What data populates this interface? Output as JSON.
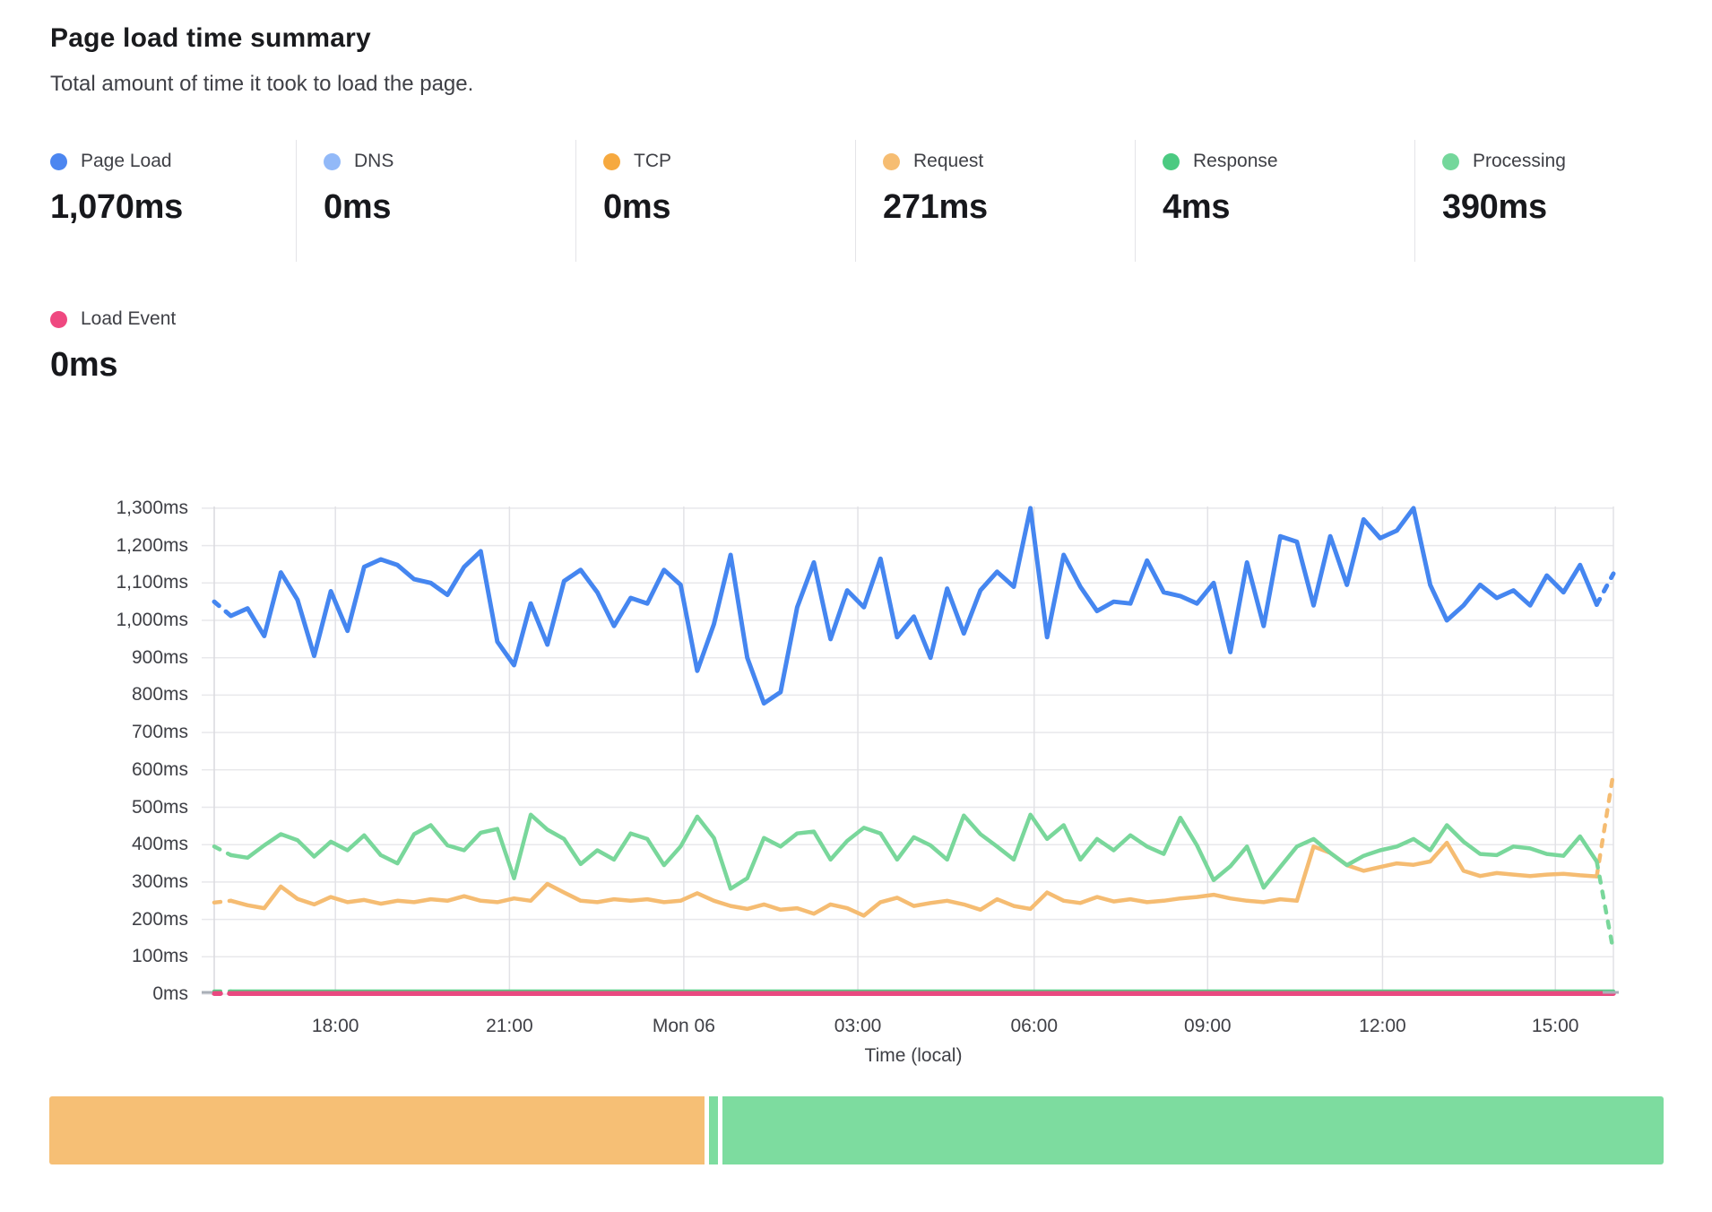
{
  "header": {
    "title": "Page load time summary",
    "subtitle": "Total amount of time it took to load the page."
  },
  "metrics": [
    {
      "id": "page-load",
      "label": "Page Load",
      "value": "1,070ms",
      "color": "#4c86f0"
    },
    {
      "id": "dns",
      "label": "DNS",
      "value": "0ms",
      "color": "#92b9f8"
    },
    {
      "id": "tcp",
      "label": "TCP",
      "value": "0ms",
      "color": "#f6a93f"
    },
    {
      "id": "request",
      "label": "Request",
      "value": "271ms",
      "color": "#f6bd72"
    },
    {
      "id": "response",
      "label": "Response",
      "value": "4ms",
      "color": "#4bca81"
    },
    {
      "id": "processing",
      "label": "Processing",
      "value": "390ms",
      "color": "#74d79b"
    }
  ],
  "metrics_row2": {
    "id": "load-event",
    "label": "Load Event",
    "value": "0ms",
    "color": "#ef4880"
  },
  "chart": {
    "y_tick_labels": [
      "0ms",
      "100ms",
      "200ms",
      "300ms",
      "400ms",
      "500ms",
      "600ms",
      "700ms",
      "800ms",
      "900ms",
      "1,000ms",
      "1,100ms",
      "1,200ms",
      "1,300ms"
    ],
    "x_ticks": [
      {
        "label": "18:00",
        "f": 0.0866
      },
      {
        "label": "21:00",
        "f": 0.211
      },
      {
        "label": "Mon 06",
        "f": 0.3356
      },
      {
        "label": "03:00",
        "f": 0.46
      },
      {
        "label": "06:00",
        "f": 0.586
      },
      {
        "label": "09:00",
        "f": 0.71
      },
      {
        "label": "12:00",
        "f": 0.835
      },
      {
        "label": "15:00",
        "f": 0.9585
      }
    ],
    "x_axis_label": "Time (local)",
    "grid_color": "#e8e8eb",
    "vgrid_color": "#e2e2e6",
    "axis_color": "#d9d9de",
    "end_tick_color": "#aab0b8"
  },
  "chart_data": {
    "type": "line",
    "unit": "ms",
    "title": "Page load time summary",
    "xlabel": "Time (local)",
    "x_tick_labels": [
      "18:00",
      "21:00",
      "Mon 06",
      "03:00",
      "06:00",
      "09:00",
      "12:00",
      "15:00"
    ],
    "y_axis": {
      "min": 0,
      "max": 1300,
      "step": 100,
      "unit": "ms"
    },
    "note": "~24h window ending ~16:00 Mon; points estimated at ~17-min cadence from pixels; first and last segments of each series are dashed (partial data).",
    "series": [
      {
        "name": "Page Load",
        "color": "#4586f0",
        "dash_first": true,
        "dash_last": true,
        "width": 5,
        "values": [
          1050,
          1012,
          1032,
          958,
          1128,
          1055,
          905,
          1078,
          972,
          1143,
          1163,
          1148,
          1110,
          1100,
          1068,
          1143,
          1185,
          943,
          880,
          1045,
          935,
          1105,
          1135,
          1075,
          985,
          1060,
          1045,
          1135,
          1095,
          865,
          990,
          1175,
          900,
          778,
          808,
          1035,
          1155,
          950,
          1080,
          1035,
          1165,
          955,
          1010,
          900,
          1085,
          965,
          1080,
          1130,
          1090,
          1300,
          955,
          1175,
          1090,
          1025,
          1050,
          1045,
          1160,
          1075,
          1065,
          1045,
          1100,
          915,
          1155,
          985,
          1225,
          1210,
          1040,
          1225,
          1095,
          1270,
          1220,
          1240,
          1300,
          1095,
          1000,
          1040,
          1095,
          1060,
          1080,
          1040,
          1120,
          1075,
          1148,
          1042,
          1125
        ]
      },
      {
        "name": "Processing",
        "color": "#79d79b",
        "dash_first": true,
        "dash_last": true,
        "width": 4.5,
        "values": [
          395,
          372,
          365,
          398,
          428,
          412,
          368,
          408,
          385,
          425,
          372,
          350,
          428,
          452,
          398,
          385,
          432,
          442,
          310,
          480,
          440,
          415,
          348,
          385,
          360,
          430,
          415,
          345,
          395,
          475,
          418,
          282,
          310,
          418,
          395,
          430,
          435,
          360,
          410,
          445,
          430,
          360,
          420,
          398,
          360,
          478,
          428,
          395,
          360,
          480,
          415,
          452,
          360,
          415,
          385,
          425,
          395,
          375,
          472,
          398,
          305,
          342,
          395,
          285,
          340,
          395,
          415,
          378,
          345,
          370,
          385,
          395,
          415,
          385,
          452,
          408,
          375,
          372,
          395,
          390,
          375,
          370,
          422,
          355,
          115
        ]
      },
      {
        "name": "Request",
        "color": "#f5bc72",
        "dash_first": true,
        "dash_last": true,
        "width": 4.5,
        "values": [
          245,
          250,
          238,
          230,
          288,
          255,
          240,
          260,
          246,
          252,
          242,
          250,
          246,
          254,
          250,
          262,
          250,
          246,
          256,
          250,
          295,
          272,
          250,
          246,
          254,
          250,
          254,
          246,
          250,
          270,
          250,
          236,
          228,
          240,
          226,
          230,
          215,
          240,
          230,
          210,
          246,
          258,
          236,
          244,
          250,
          240,
          226,
          254,
          236,
          228,
          272,
          250,
          244,
          260,
          248,
          254,
          246,
          250,
          256,
          260,
          266,
          256,
          250,
          246,
          254,
          250,
          395,
          378,
          345,
          330,
          340,
          350,
          346,
          355,
          405,
          330,
          316,
          324,
          320,
          316,
          320,
          322,
          318,
          315,
          592
        ]
      },
      {
        "name": "Response",
        "color": "#58cd86",
        "dash_first": true,
        "dash_last": false,
        "width": 4,
        "flat": 8
      },
      {
        "name": "Load Event",
        "color": "#e94980",
        "dash_first": true,
        "dash_last": false,
        "width": 5.5,
        "flat": 2
      },
      {
        "name": "DNS",
        "color": "#92b9f8",
        "dash_first": false,
        "dash_last": false,
        "width": 0,
        "flat": 0
      },
      {
        "name": "TCP",
        "color": "#f6a93f",
        "dash_first": false,
        "dash_last": false,
        "width": 0,
        "flat": 0
      }
    ]
  },
  "status_bar": {
    "segments": [
      {
        "kind": "request",
        "color": "#f6bf75",
        "flex": 731
      },
      {
        "kind": "gap",
        "color": "#ffffff",
        "flex": 5
      },
      {
        "kind": "processing",
        "color": "#7ddc9f",
        "flex": 10
      },
      {
        "kind": "gap",
        "color": "#ffffff",
        "flex": 5
      },
      {
        "kind": "processing",
        "color": "#7ddc9f",
        "flex": 1050
      }
    ]
  }
}
